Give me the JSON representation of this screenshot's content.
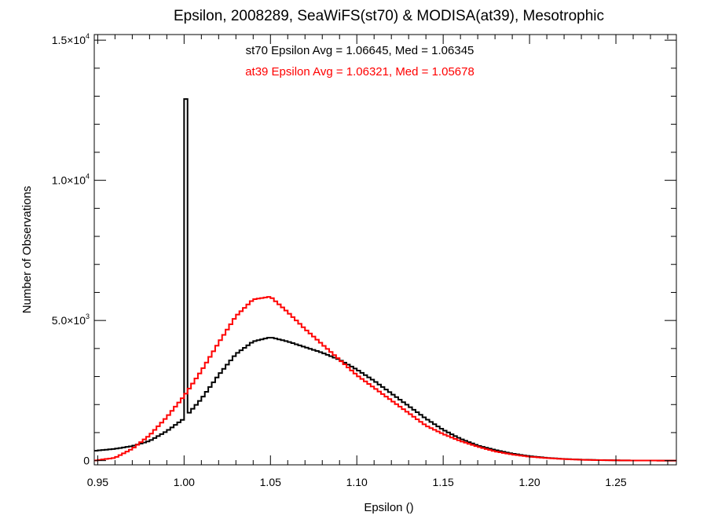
{
  "chart_data": {
    "type": "histogram",
    "title": "Epsilon, 2008289, SeaWiFS(st70) & MODISA(at39), Mesotrophic",
    "xlabel": "Epsilon ()",
    "ylabel": "Number of Observations",
    "xlim": [
      0.948,
      1.285
    ],
    "ylim": [
      -150,
      15200
    ],
    "bin_width": 0.002,
    "grid": false,
    "x_ticks": [
      {
        "value": 0.95,
        "label": "0.95"
      },
      {
        "value": 1.0,
        "label": "1.00"
      },
      {
        "value": 1.05,
        "label": "1.05"
      },
      {
        "value": 1.1,
        "label": "1.10"
      },
      {
        "value": 1.15,
        "label": "1.15"
      },
      {
        "value": 1.2,
        "label": "1.20"
      },
      {
        "value": 1.25,
        "label": "1.25"
      }
    ],
    "y_ticks": [
      {
        "value": 0,
        "mantissa": "0",
        "exponent": ""
      },
      {
        "value": 5000,
        "mantissa": "5.0×10",
        "exponent": "3"
      },
      {
        "value": 10000,
        "mantissa": "1.0×10",
        "exponent": "4"
      },
      {
        "value": 15000,
        "mantissa": "1.5×10",
        "exponent": "4"
      }
    ],
    "annotations": [
      {
        "text": "st70 Epsilon Avg = 1.06645, Med = 1.06345",
        "color": "#000000"
      },
      {
        "text": "at39 Epsilon Avg = 1.06321, Med = 1.05678",
        "color": "#ff0000"
      }
    ],
    "series": [
      {
        "id": "st70",
        "color": "#000000",
        "spike": {
          "x": 1.0,
          "value": 12900
        },
        "points": [
          [
            0.948,
            350
          ],
          [
            0.96,
            420
          ],
          [
            0.97,
            520
          ],
          [
            0.98,
            700
          ],
          [
            0.99,
            1050
          ],
          [
            1.0,
            1500
          ],
          [
            1.01,
            2200
          ],
          [
            1.02,
            3050
          ],
          [
            1.03,
            3800
          ],
          [
            1.04,
            4250
          ],
          [
            1.05,
            4400
          ],
          [
            1.06,
            4250
          ],
          [
            1.07,
            4050
          ],
          [
            1.08,
            3850
          ],
          [
            1.09,
            3600
          ],
          [
            1.1,
            3250
          ],
          [
            1.11,
            2850
          ],
          [
            1.12,
            2400
          ],
          [
            1.13,
            1950
          ],
          [
            1.14,
            1500
          ],
          [
            1.15,
            1100
          ],
          [
            1.16,
            780
          ],
          [
            1.17,
            540
          ],
          [
            1.18,
            380
          ],
          [
            1.19,
            250
          ],
          [
            1.2,
            160
          ],
          [
            1.21,
            100
          ],
          [
            1.22,
            60
          ],
          [
            1.23,
            35
          ],
          [
            1.24,
            20
          ],
          [
            1.25,
            10
          ],
          [
            1.26,
            5
          ],
          [
            1.285,
            0
          ]
        ]
      },
      {
        "id": "at39",
        "color": "#ff0000",
        "points": [
          [
            0.948,
            0
          ],
          [
            0.96,
            100
          ],
          [
            0.97,
            420
          ],
          [
            0.98,
            900
          ],
          [
            0.99,
            1550
          ],
          [
            1.0,
            2300
          ],
          [
            1.01,
            3200
          ],
          [
            1.02,
            4200
          ],
          [
            1.03,
            5150
          ],
          [
            1.04,
            5750
          ],
          [
            1.05,
            5850
          ],
          [
            1.06,
            5300
          ],
          [
            1.07,
            4700
          ],
          [
            1.08,
            4150
          ],
          [
            1.09,
            3600
          ],
          [
            1.1,
            3050
          ],
          [
            1.11,
            2600
          ],
          [
            1.12,
            2150
          ],
          [
            1.13,
            1700
          ],
          [
            1.14,
            1250
          ],
          [
            1.15,
            950
          ],
          [
            1.16,
            700
          ],
          [
            1.17,
            500
          ],
          [
            1.18,
            330
          ],
          [
            1.19,
            220
          ],
          [
            1.2,
            140
          ],
          [
            1.21,
            90
          ],
          [
            1.22,
            55
          ],
          [
            1.23,
            30
          ],
          [
            1.24,
            18
          ],
          [
            1.25,
            10
          ],
          [
            1.26,
            5
          ],
          [
            1.285,
            0
          ]
        ]
      }
    ]
  }
}
